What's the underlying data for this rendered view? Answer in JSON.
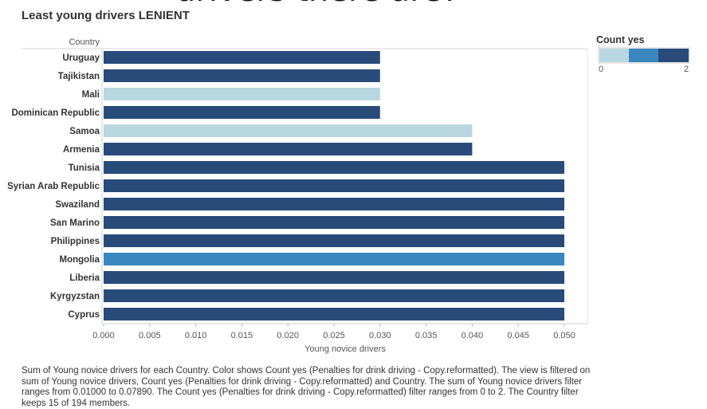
{
  "top_clipped_text": "drivers there are?",
  "chart_data": {
    "type": "bar",
    "orientation": "horizontal",
    "title": "Least young drivers LENIENT",
    "row_header": "Country",
    "xlabel": "Young novice drivers",
    "xlim": [
      0,
      0.052
    ],
    "xticks": [
      "0.000",
      "0.005",
      "0.010",
      "0.015",
      "0.020",
      "0.025",
      "0.030",
      "0.035",
      "0.040",
      "0.045",
      "0.050"
    ],
    "grid": true,
    "categories": [
      "Uruguay",
      "Tajikistan",
      "Mali",
      "Dominican Republic",
      "Samoa",
      "Armenia",
      "Tunisia",
      "Syrian Arab Republic",
      "Swaziland",
      "San Marino",
      "Philippines",
      "Mongolia",
      "Liberia",
      "Kyrgyzstan",
      "Cyprus"
    ],
    "values": [
      0.03,
      0.03,
      0.03,
      0.03,
      0.04,
      0.04,
      0.05,
      0.05,
      0.05,
      0.05,
      0.05,
      0.05,
      0.05,
      0.05,
      0.05
    ],
    "color_values": [
      2,
      2,
      0,
      2,
      0,
      2,
      2,
      2,
      2,
      2,
      2,
      1,
      2,
      2,
      2
    ],
    "legend": {
      "title": "Count yes",
      "min_label": "0",
      "max_label": "2",
      "placement": "top-right",
      "colors": [
        "#b9d7e0",
        "#3a87bf",
        "#284b7a"
      ]
    }
  },
  "caption": "Sum of Young novice drivers for each Country.  Color shows Count yes (Penalties for drink driving - Copy.reformatted). The view is filtered on sum of Young novice drivers, Count yes (Penalties for drink driving - Copy.reformatted) and Country. The sum of Young novice drivers filter ranges from 0.01000 to 0.07890. The Count yes (Penalties for drink driving - Copy.reformatted) filter ranges from 0 to 2. The Country filter keeps 15 of 194 members."
}
